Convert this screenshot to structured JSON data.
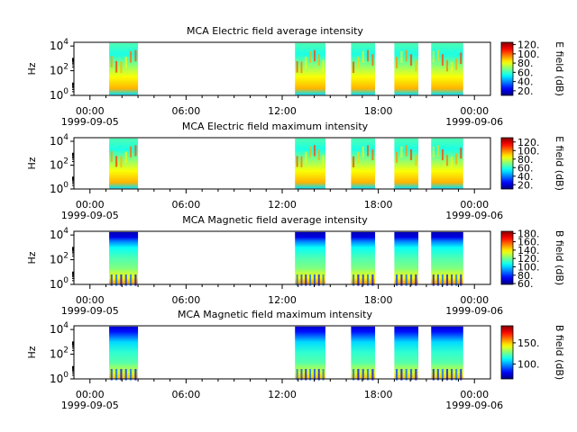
{
  "chart_data": [
    {
      "type": "heatmap",
      "title": "MCA  Electric field average intensity",
      "ylabel": "Hz",
      "y_scale": "log",
      "y_ticks": [
        {
          "exp": "0"
        },
        {
          "exp": "2"
        },
        {
          "exp": "4"
        }
      ],
      "ylim_hz": [
        1,
        20000
      ],
      "colorbar": {
        "label": "E field (dB)",
        "range": [
          10,
          125
        ],
        "ticks": [
          "20.",
          "40.",
          "60.",
          "80.",
          "100.",
          "120."
        ]
      },
      "x_ticks": [
        {
          "t": "00:00",
          "d": "1999-09-05"
        },
        {
          "t": "06:00",
          "d": ""
        },
        {
          "t": "12:00",
          "d": ""
        },
        {
          "t": "18:00",
          "d": ""
        },
        {
          "t": "00:00",
          "d": "1999-09-06"
        }
      ],
      "segments_hours": [
        [
          1.2,
          3.0
        ],
        [
          12.8,
          14.7
        ],
        [
          16.3,
          17.8
        ],
        [
          19.0,
          20.5
        ],
        [
          21.3,
          23.3
        ]
      ]
    },
    {
      "type": "heatmap",
      "title": "MCA  Electric field maximum intensity",
      "ylabel": "Hz",
      "y_scale": "log",
      "y_ticks": [
        {
          "exp": "0"
        },
        {
          "exp": "2"
        },
        {
          "exp": "4"
        }
      ],
      "ylim_hz": [
        1,
        20000
      ],
      "colorbar": {
        "label": "E field (dB)",
        "range": [
          10,
          130
        ],
        "ticks": [
          "20.",
          "40.",
          "60.",
          "80.",
          "100.",
          "120."
        ]
      },
      "x_ticks": [
        {
          "t": "00:00",
          "d": "1999-09-05"
        },
        {
          "t": "06:00",
          "d": ""
        },
        {
          "t": "12:00",
          "d": ""
        },
        {
          "t": "18:00",
          "d": ""
        },
        {
          "t": "00:00",
          "d": "1999-09-06"
        }
      ],
      "segments_hours": [
        [
          1.2,
          3.0
        ],
        [
          12.8,
          14.7
        ],
        [
          16.3,
          17.8
        ],
        [
          19.0,
          20.5
        ],
        [
          21.3,
          23.3
        ]
      ]
    },
    {
      "type": "heatmap",
      "title": "MCA  Magnetic field average intensity",
      "ylabel": "Hz",
      "y_scale": "log",
      "y_ticks": [
        {
          "exp": "0"
        },
        {
          "exp": "2"
        },
        {
          "exp": "4"
        }
      ],
      "ylim_hz": [
        1,
        20000
      ],
      "colorbar": {
        "label": "B field (dB)",
        "range": [
          58,
          185
        ],
        "ticks": [
          "60.",
          "80.",
          "100.",
          "120.",
          "140.",
          "160.",
          "180."
        ]
      },
      "x_ticks": [
        {
          "t": "00:00",
          "d": "1999-09-05"
        },
        {
          "t": "06:00",
          "d": ""
        },
        {
          "t": "12:00",
          "d": ""
        },
        {
          "t": "18:00",
          "d": ""
        },
        {
          "t": "00:00",
          "d": "1999-09-06"
        }
      ],
      "segments_hours": [
        [
          1.2,
          3.0
        ],
        [
          12.8,
          14.7
        ],
        [
          16.3,
          17.8
        ],
        [
          19.0,
          20.5
        ],
        [
          21.3,
          23.3
        ]
      ]
    },
    {
      "type": "heatmap",
      "title": "MCA  Magnetic field maximum intensity",
      "ylabel": "Hz",
      "y_scale": "log",
      "y_ticks": [
        {
          "exp": "0"
        },
        {
          "exp": "2"
        },
        {
          "exp": "4"
        }
      ],
      "ylim_hz": [
        1,
        20000
      ],
      "colorbar": {
        "label": "B field (dB)",
        "range": [
          65,
          190
        ],
        "ticks": [
          "100.",
          "150."
        ]
      },
      "x_ticks": [
        {
          "t": "00:00",
          "d": "1999-09-05"
        },
        {
          "t": "06:00",
          "d": ""
        },
        {
          "t": "12:00",
          "d": ""
        },
        {
          "t": "18:00",
          "d": ""
        },
        {
          "t": "00:00",
          "d": "1999-09-06"
        }
      ],
      "segments_hours": [
        [
          1.2,
          3.0
        ],
        [
          12.8,
          14.7
        ],
        [
          16.3,
          17.8
        ],
        [
          19.0,
          20.5
        ],
        [
          21.3,
          23.3
        ]
      ]
    }
  ],
  "x_axis": {
    "range_hours": [
      -1,
      25
    ]
  },
  "colors": {
    "colormap": "jet"
  }
}
